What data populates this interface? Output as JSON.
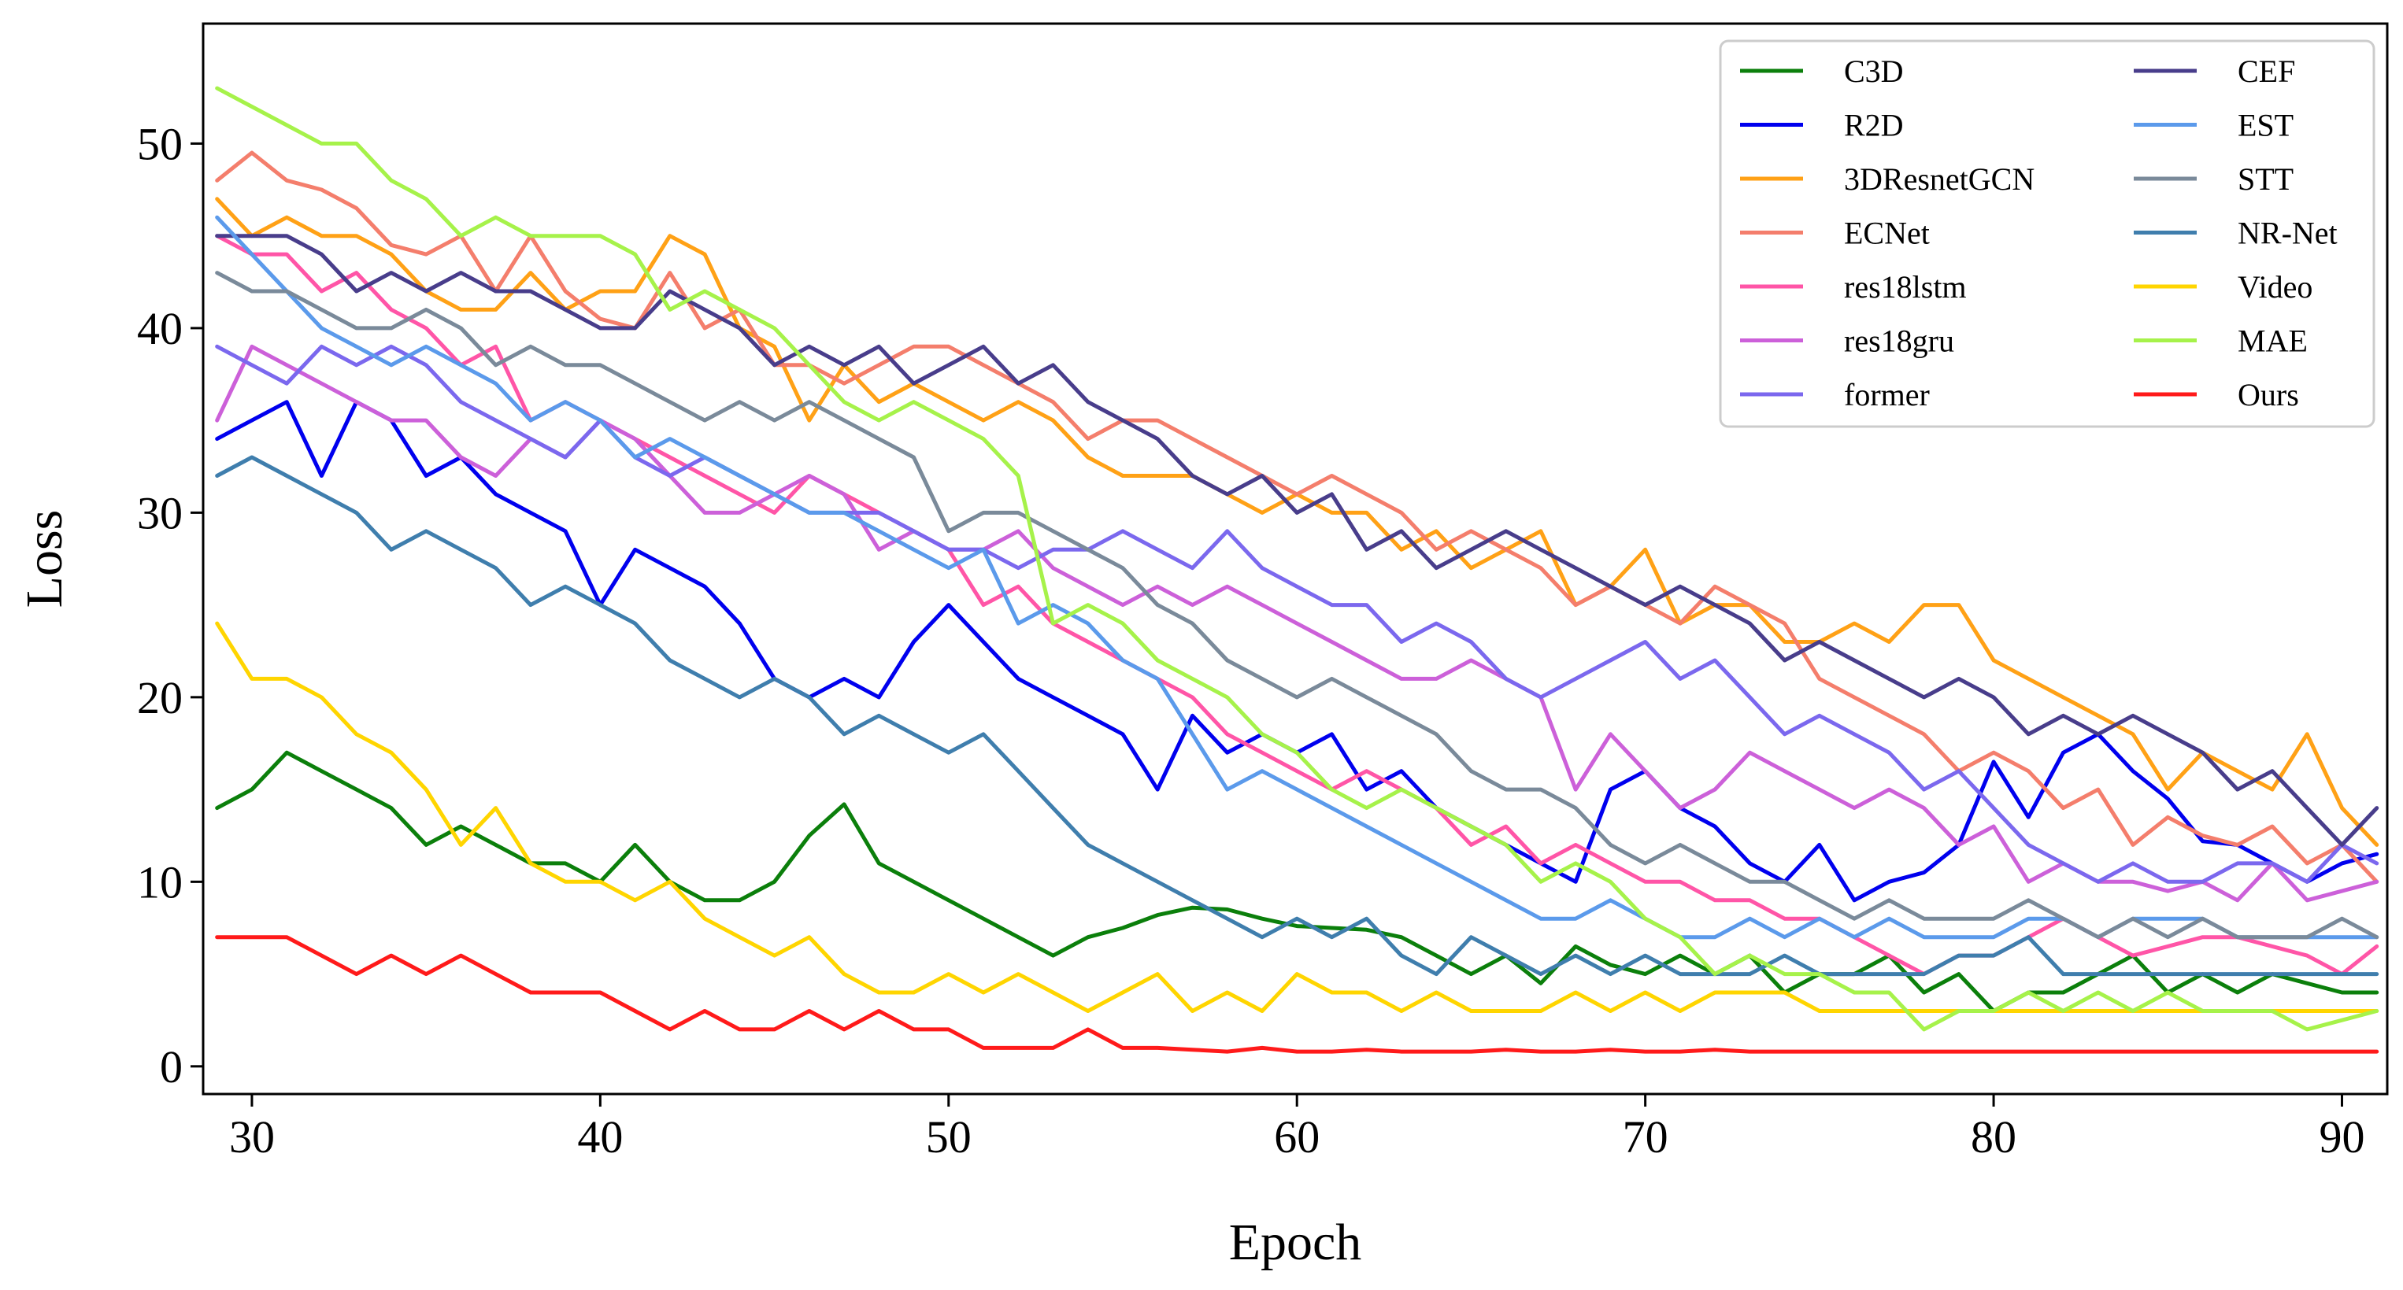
{
  "chart_data": {
    "type": "line",
    "title": "",
    "xlabel": "Epoch",
    "ylabel": "Loss",
    "xlim": [
      28.6,
      91.3
    ],
    "ylim": [
      -1.5,
      56.5
    ],
    "xticks": [
      30,
      40,
      50,
      60,
      70,
      80,
      90
    ],
    "yticks": [
      0,
      10,
      20,
      30,
      40,
      50
    ],
    "grid": false,
    "legend_position": "top-right",
    "x": [
      29,
      30,
      31,
      32,
      33,
      34,
      35,
      36,
      37,
      38,
      39,
      40,
      41,
      42,
      43,
      44,
      45,
      46,
      47,
      48,
      49,
      50,
      51,
      52,
      53,
      54,
      55,
      56,
      57,
      58,
      59,
      60,
      61,
      62,
      63,
      64,
      65,
      66,
      67,
      68,
      69,
      70,
      71,
      72,
      73,
      74,
      75,
      76,
      77,
      78,
      79,
      80,
      81,
      82,
      83,
      84,
      85,
      86,
      87,
      88,
      89,
      90,
      91
    ],
    "series": [
      {
        "name": "C3D",
        "color": "#0b7f0b",
        "values": [
          14,
          15,
          17,
          16,
          15,
          14,
          12,
          13,
          12,
          11,
          11,
          10,
          12,
          10,
          9,
          9,
          10,
          12.5,
          14.2,
          11,
          10,
          9,
          8,
          7,
          6,
          7,
          7.5,
          8.2,
          8.6,
          8.5,
          8,
          7.6,
          7.5,
          7.4,
          7,
          6,
          5,
          6,
          4.5,
          6.5,
          5.5,
          5,
          6,
          5,
          6,
          4,
          5,
          5,
          6,
          4,
          5,
          3,
          4,
          4,
          5,
          6,
          4,
          5,
          4,
          5,
          4.5,
          4,
          4
        ]
      },
      {
        "name": "R2D",
        "color": "#0000ee",
        "values": [
          34,
          35,
          36,
          32,
          36,
          35,
          32,
          33,
          31,
          30,
          29,
          25,
          28,
          27,
          26,
          24,
          21,
          20,
          21,
          20,
          23,
          25,
          23,
          21,
          20,
          19,
          18,
          15,
          19,
          17,
          18,
          17,
          18,
          15,
          16,
          14,
          13,
          12,
          11,
          10,
          15,
          16,
          14,
          13,
          11,
          10,
          12,
          9,
          10,
          10.5,
          12,
          16.5,
          13.5,
          17,
          18,
          16,
          14.5,
          12.2,
          12,
          11,
          10,
          11,
          11.5
        ]
      },
      {
        "name": "3DResnetGCN",
        "color": "#ffa116",
        "values": [
          47,
          45,
          46,
          45,
          45,
          44,
          42,
          41,
          41,
          43,
          41,
          42,
          42,
          45,
          44,
          40,
          39,
          35,
          38,
          36,
          37,
          36,
          35,
          36,
          35,
          33,
          32,
          32,
          32,
          31,
          30,
          31,
          30,
          30,
          28,
          29,
          27,
          28,
          29,
          25,
          26,
          28,
          24,
          25,
          25,
          23,
          23,
          24,
          23,
          25,
          25,
          22,
          21,
          20,
          19,
          18,
          15,
          17,
          16,
          15,
          18,
          14,
          12
        ]
      },
      {
        "name": "ECNet",
        "color": "#f47e6c",
        "values": [
          48,
          49.5,
          48,
          47.5,
          46.5,
          44.5,
          44,
          45,
          42,
          45,
          42,
          40.5,
          40,
          43,
          40,
          41,
          38,
          38,
          37,
          38,
          39,
          39,
          38,
          37,
          36,
          34,
          35,
          35,
          34,
          33,
          32,
          31,
          32,
          31,
          30,
          28,
          29,
          28,
          27,
          25,
          26,
          25,
          24,
          26,
          25,
          24,
          21,
          20,
          19,
          18,
          16,
          17,
          16,
          14,
          15,
          12,
          13.5,
          12.5,
          12,
          13,
          11,
          12,
          10
        ]
      },
      {
        "name": "res18lstm",
        "color": "#ff55a7",
        "values": [
          45,
          44,
          44,
          42,
          43,
          41,
          40,
          38,
          39,
          35,
          36,
          35,
          34,
          33,
          32,
          31,
          30,
          32,
          31,
          30,
          29,
          28,
          25,
          26,
          24,
          23,
          22,
          21,
          20,
          18,
          17,
          16,
          15,
          16,
          15,
          14,
          12,
          13,
          11,
          12,
          11,
          10,
          10,
          9,
          9,
          8,
          8,
          7,
          6,
          5,
          6,
          6,
          7,
          8,
          7,
          6,
          6.5,
          7,
          7,
          6.5,
          6,
          5,
          6.5
        ]
      },
      {
        "name": "res18gru",
        "color": "#cc60d9",
        "values": [
          35,
          39,
          38,
          37,
          36,
          35,
          35,
          33,
          32,
          34,
          33,
          35,
          34,
          32,
          30,
          30,
          31,
          32,
          31,
          28,
          29,
          28,
          28,
          29,
          27,
          26,
          25,
          26,
          25,
          26,
          25,
          24,
          23,
          22,
          21,
          21,
          22,
          21,
          20,
          15,
          18,
          16,
          14,
          15,
          17,
          16,
          15,
          14,
          15,
          14,
          12,
          13,
          10,
          11,
          10,
          10,
          9.5,
          10,
          9,
          11,
          9,
          9.5,
          10
        ]
      },
      {
        "name": "former",
        "color": "#7b68ee",
        "values": [
          39,
          38,
          37,
          39,
          38,
          39,
          38,
          36,
          35,
          34,
          33,
          35,
          33,
          32,
          33,
          32,
          31,
          30,
          30,
          30,
          29,
          28,
          28,
          27,
          28,
          28,
          29,
          28,
          27,
          29,
          27,
          26,
          25,
          25,
          23,
          24,
          23,
          21,
          20,
          21,
          22,
          23,
          21,
          22,
          20,
          18,
          19,
          18,
          17,
          15,
          16,
          14,
          12,
          11,
          10,
          11,
          10,
          10,
          11,
          11,
          10,
          12,
          11
        ]
      },
      {
        "name": "CEF",
        "color": "#483d8b",
        "values": [
          45,
          45,
          45,
          44,
          42,
          43,
          42,
          43,
          42,
          42,
          41,
          40,
          40,
          42,
          41,
          40,
          38,
          39,
          38,
          39,
          37,
          38,
          39,
          37,
          38,
          36,
          35,
          34,
          32,
          31,
          32,
          30,
          31,
          28,
          29,
          27,
          28,
          29,
          28,
          27,
          26,
          25,
          26,
          25,
          24,
          22,
          23,
          22,
          21,
          20,
          21,
          20,
          18,
          19,
          18,
          19,
          18,
          17,
          15,
          16,
          14,
          12,
          14
        ]
      },
      {
        "name": "EST",
        "color": "#5b9aeb",
        "values": [
          46,
          44,
          42,
          40,
          39,
          38,
          39,
          38,
          37,
          35,
          36,
          35,
          33,
          34,
          33,
          32,
          31,
          30,
          30,
          29,
          28,
          27,
          28,
          24,
          25,
          24,
          22,
          21,
          18,
          15,
          16,
          15,
          14,
          13,
          12,
          11,
          10,
          9,
          8,
          8,
          9,
          8,
          7,
          7,
          8,
          7,
          8,
          7,
          8,
          7,
          7,
          7,
          8,
          8,
          7,
          8,
          8,
          8,
          7,
          7,
          7,
          7,
          7
        ]
      },
      {
        "name": "STT",
        "color": "#7a8a9a",
        "values": [
          43,
          42,
          42,
          41,
          40,
          40,
          41,
          40,
          38,
          39,
          38,
          38,
          37,
          36,
          35,
          36,
          35,
          36,
          35,
          34,
          33,
          29,
          30,
          30,
          29,
          28,
          27,
          25,
          24,
          22,
          21,
          20,
          21,
          20,
          19,
          18,
          16,
          15,
          15,
          14,
          12,
          11,
          12,
          11,
          10,
          10,
          9,
          8,
          9,
          8,
          8,
          8,
          9,
          8,
          7,
          8,
          7,
          8,
          7,
          7,
          7,
          8,
          7
        ]
      },
      {
        "name": "NR-Net",
        "color": "#3f7ead",
        "values": [
          32,
          33,
          32,
          31,
          30,
          28,
          29,
          28,
          27,
          25,
          26,
          25,
          24,
          22,
          21,
          20,
          21,
          20,
          18,
          19,
          18,
          17,
          18,
          16,
          14,
          12,
          11,
          10,
          9,
          8,
          7,
          8,
          7,
          8,
          6,
          5,
          7,
          6,
          5,
          6,
          5,
          6,
          5,
          5,
          5,
          6,
          5,
          5,
          5,
          5,
          6,
          6,
          7,
          5,
          5,
          5,
          5,
          5,
          5,
          5,
          5,
          5,
          5
        ]
      },
      {
        "name": "Video",
        "color": "#ffd500",
        "values": [
          24,
          21,
          21,
          20,
          18,
          17,
          15,
          12,
          14,
          11,
          10,
          10,
          9,
          10,
          8,
          7,
          6,
          7,
          5,
          4,
          4,
          5,
          4,
          5,
          4,
          3,
          4,
          5,
          3,
          4,
          3,
          5,
          4,
          4,
          3,
          4,
          3,
          3,
          3,
          4,
          3,
          4,
          3,
          4,
          4,
          4,
          3,
          3,
          3,
          3,
          3,
          3,
          3,
          3,
          3,
          3,
          3,
          3,
          3,
          3,
          3,
          3,
          3
        ]
      },
      {
        "name": "MAE",
        "color": "#a6f24a",
        "values": [
          53,
          52,
          51,
          50,
          50,
          48,
          47,
          45,
          46,
          45,
          45,
          45,
          44,
          41,
          42,
          41,
          40,
          38,
          36,
          35,
          36,
          35,
          34,
          32,
          24,
          25,
          24,
          22,
          21,
          20,
          18,
          17,
          15,
          14,
          15,
          14,
          13,
          12,
          10,
          11,
          10,
          8,
          7,
          5,
          6,
          5,
          5,
          4,
          4,
          2,
          3,
          3,
          4,
          3,
          4,
          3,
          4,
          3,
          3,
          3,
          2,
          2.5,
          3
        ]
      },
      {
        "name": "Ours",
        "color": "#ff1a1a",
        "values": [
          7,
          7,
          7,
          6,
          5,
          6,
          5,
          6,
          5,
          4,
          4,
          4,
          3,
          2,
          3,
          2,
          2,
          3,
          2,
          3,
          2,
          2,
          1,
          1,
          1,
          2,
          1,
          1,
          0.9,
          0.8,
          1,
          0.8,
          0.8,
          0.9,
          0.8,
          0.8,
          0.8,
          0.9,
          0.8,
          0.8,
          0.9,
          0.8,
          0.8,
          0.9,
          0.8,
          0.8,
          0.8,
          0.8,
          0.8,
          0.8,
          0.8,
          0.8,
          0.8,
          0.8,
          0.8,
          0.8,
          0.8,
          0.8,
          0.8,
          0.8,
          0.8,
          0.8,
          0.8
        ]
      }
    ]
  }
}
